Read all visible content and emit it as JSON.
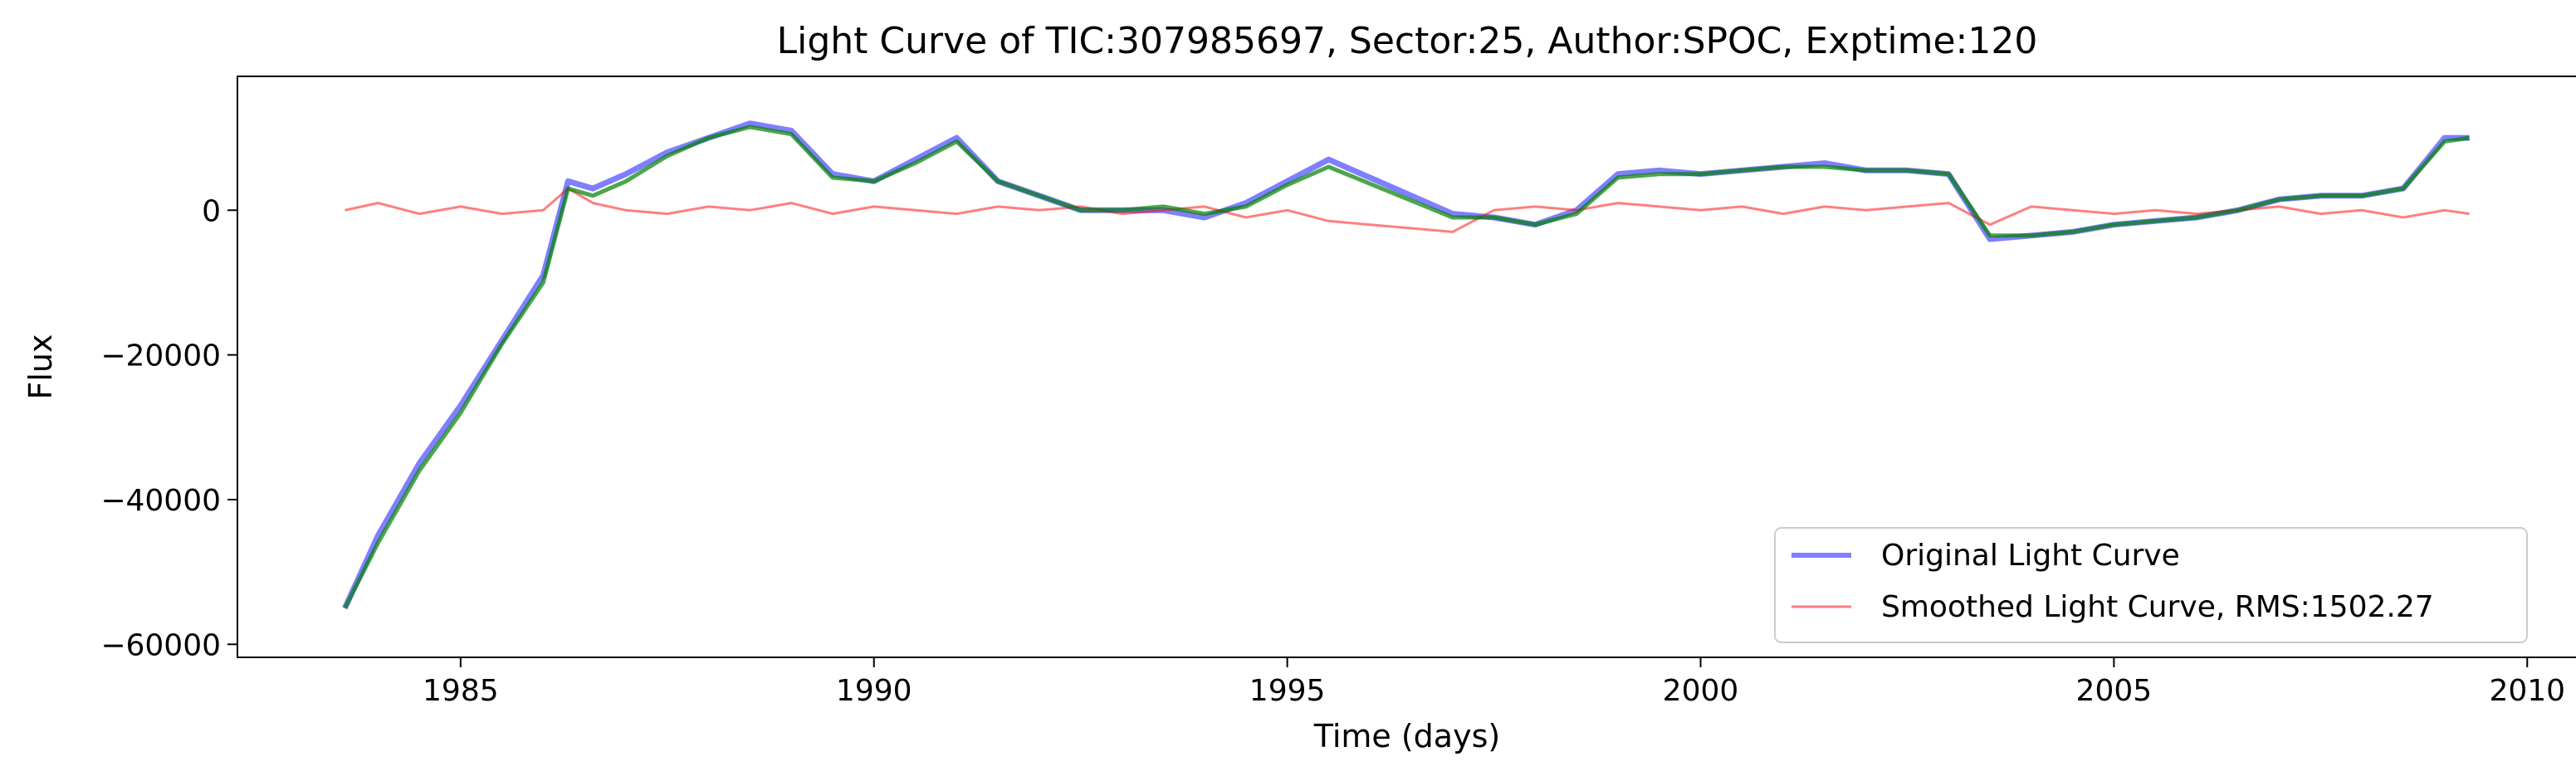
{
  "chart_data": {
    "type": "line",
    "title": "Light Curve of TIC:307985697, Sector:25, Author:SPOC, Exptime:120",
    "xlabel": "Time (days)",
    "ylabel": "Flux",
    "xlim": [
      1982.3,
      2010.6
    ],
    "ylim": [
      -61800,
      18500
    ],
    "xticks": [
      1985,
      1990,
      1995,
      2000,
      2005,
      2010
    ],
    "yticks": [
      -60000,
      -40000,
      -20000,
      0
    ],
    "xtick_labels": [
      "1985",
      "1990",
      "1995",
      "2000",
      "2005",
      "2010"
    ],
    "ytick_labels": [
      "−60000",
      "−40000",
      "−20000",
      "0"
    ],
    "grid": false,
    "legend_position": "bottom-right",
    "legend": [
      "Original Light Curve",
      "Smoothed Light Curve, RMS:1502.27"
    ],
    "series": [
      {
        "name": "Original Light Curve",
        "color": "#0000ff",
        "alpha": 0.5,
        "x": [
          1983.6,
          1984.0,
          1984.5,
          1985.0,
          1985.5,
          1986.0,
          1986.3,
          1986.6,
          1987.0,
          1987.5,
          1988.0,
          1988.5,
          1989.0,
          1989.5,
          1990.0,
          1990.5,
          1991.0,
          1991.5,
          1992.0,
          1992.5,
          1993.0,
          1993.5,
          1994.0,
          1994.5,
          1995.0,
          1995.5,
          1997.0,
          1997.5,
          1998.0,
          1998.5,
          1999.0,
          1999.5,
          2000.0,
          2000.5,
          2001.0,
          2001.5,
          2002.0,
          2002.5,
          2003.0,
          2003.5,
          2004.0,
          2004.5,
          2005.0,
          2005.5,
          2006.0,
          2006.5,
          2007.0,
          2007.5,
          2008.0,
          2008.5,
          2009.0,
          2009.3
        ],
        "y": [
          -55000,
          -45000,
          -35000,
          -27000,
          -18000,
          -9000,
          4000,
          3000,
          5000,
          8000,
          10000,
          12000,
          11000,
          5000,
          4000,
          7000,
          10000,
          4000,
          2000,
          0,
          0,
          0,
          -1000,
          1000,
          4000,
          7000,
          -500,
          -1000,
          -2000,
          0,
          5000,
          5500,
          5000,
          5500,
          6000,
          6500,
          5500,
          5500,
          5000,
          -4000,
          -3500,
          -3000,
          -2000,
          -1500,
          -1000,
          0,
          1500,
          2000,
          2000,
          3000,
          10000,
          10000
        ]
      },
      {
        "name": "Smoothed Light Curve, RMS:1502.27",
        "color": "#ff0000",
        "alpha": 0.5,
        "x": [
          1983.6,
          1984.0,
          1984.5,
          1985.0,
          1985.5,
          1986.0,
          1986.3,
          1986.6,
          1987.0,
          1987.5,
          1988.0,
          1988.5,
          1989.0,
          1989.5,
          1990.0,
          1990.5,
          1991.0,
          1991.5,
          1992.0,
          1992.5,
          1993.0,
          1993.5,
          1994.0,
          1994.5,
          1995.0,
          1995.5,
          1997.0,
          1997.5,
          1998.0,
          1998.5,
          1999.0,
          1999.5,
          2000.0,
          2000.5,
          2001.0,
          2001.5,
          2002.0,
          2002.5,
          2003.0,
          2003.5,
          2004.0,
          2004.5,
          2005.0,
          2005.5,
          2006.0,
          2006.5,
          2007.0,
          2007.5,
          2008.0,
          2008.5,
          2009.0,
          2009.3
        ],
        "y": [
          0,
          1000,
          -500,
          500,
          -500,
          0,
          3000,
          1000,
          0,
          -500,
          500,
          0,
          1000,
          -500,
          500,
          0,
          -500,
          500,
          0,
          500,
          -500,
          0,
          500,
          -1000,
          0,
          -1500,
          -3000,
          0,
          500,
          0,
          1000,
          500,
          0,
          500,
          -500,
          500,
          0,
          500,
          1000,
          -2000,
          500,
          0,
          -500,
          0,
          -500,
          0,
          500,
          -500,
          0,
          -1000,
          0,
          -500
        ]
      },
      {
        "name": "",
        "color": "#008000",
        "alpha": 0.7,
        "x": [
          1983.6,
          1984.0,
          1984.5,
          1985.0,
          1985.5,
          1986.0,
          1986.3,
          1986.6,
          1987.0,
          1987.5,
          1988.0,
          1988.5,
          1989.0,
          1989.5,
          1990.0,
          1990.5,
          1991.0,
          1991.5,
          1992.0,
          1992.5,
          1993.0,
          1993.5,
          1994.0,
          1994.5,
          1995.0,
          1995.5,
          1997.0,
          1997.5,
          1998.0,
          1998.5,
          1999.0,
          1999.5,
          2000.0,
          2000.5,
          2001.0,
          2001.5,
          2002.0,
          2002.5,
          2003.0,
          2003.5,
          2004.0,
          2004.5,
          2005.0,
          2005.5,
          2006.0,
          2006.5,
          2007.0,
          2007.5,
          2008.0,
          2008.5,
          2009.0,
          2009.3
        ],
        "y": [
          -55000,
          -46000,
          -36000,
          -28000,
          -18500,
          -10000,
          3000,
          2000,
          4000,
          7500,
          10000,
          11500,
          10500,
          4500,
          4000,
          6500,
          9500,
          4000,
          2000,
          0,
          0,
          500,
          -500,
          500,
          3500,
          6000,
          -1000,
          -1000,
          -2000,
          -500,
          4500,
          5000,
          5000,
          5500,
          6000,
          6000,
          5500,
          5500,
          5000,
          -3500,
          -3500,
          -3000,
          -2000,
          -1500,
          -1000,
          0,
          1500,
          2000,
          2000,
          3000,
          9500,
          10000
        ]
      }
    ]
  }
}
